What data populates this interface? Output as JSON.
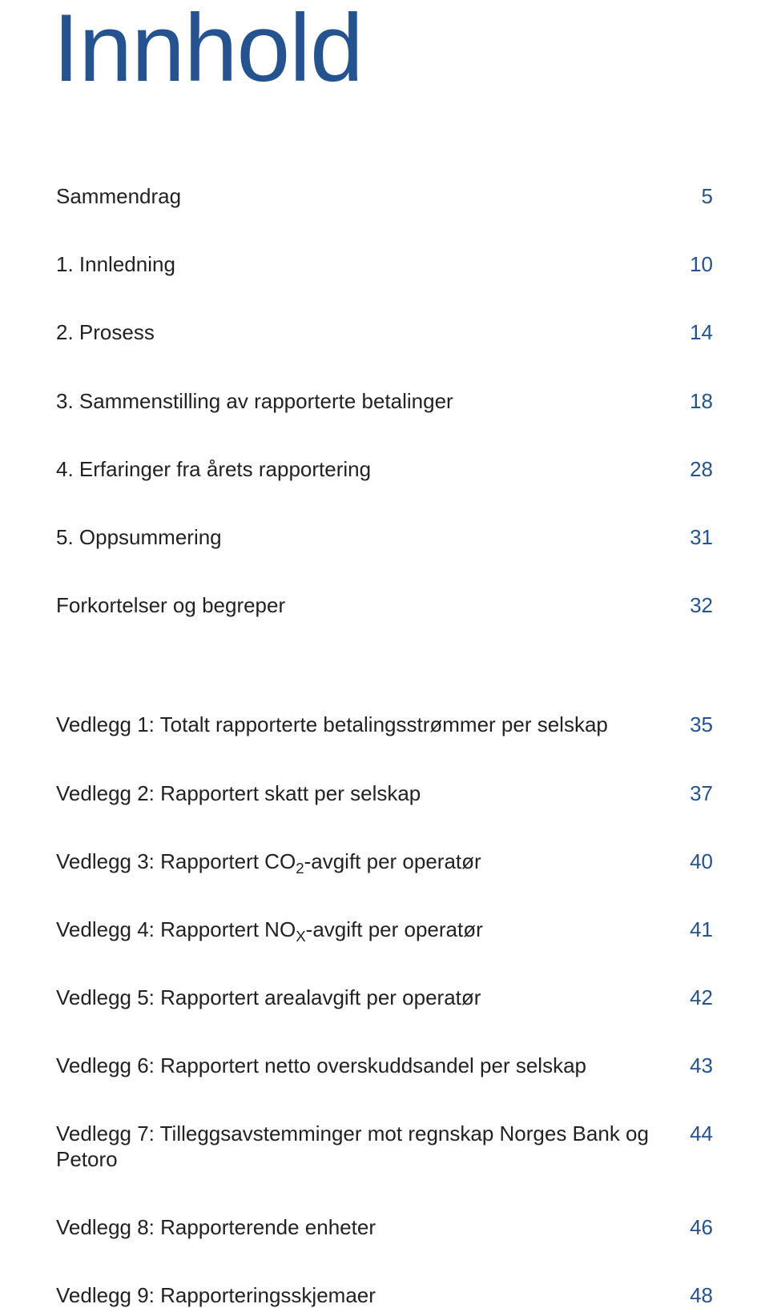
{
  "title": "Innhold",
  "title_color": "#25538f",
  "page_number_color": "#25538f",
  "label_color": "#222222",
  "entries": [
    {
      "label": "Sammendrag",
      "page": "5"
    },
    {
      "label": "1. Innledning",
      "page": "10"
    },
    {
      "label": "2. Prosess",
      "page": "14"
    },
    {
      "label": "3. Sammenstilling av rapporterte betalinger",
      "page": "18"
    },
    {
      "label": "4. Erfaringer fra årets rapportering",
      "page": "28"
    },
    {
      "label": "5. Oppsummering",
      "page": "31"
    },
    {
      "label": "Forkortelser og begreper",
      "page": "32"
    }
  ],
  "appendix": [
    {
      "label": "Vedlegg 1: Totalt rapporterte betalingsstrømmer per selskap",
      "page": "35"
    },
    {
      "label_html": "Vedlegg 2: Rapportert skatt per selskap",
      "page": "37"
    },
    {
      "label_co2_prefix": "Vedlegg 3: Rapportert CO",
      "label_co2_sub": "2",
      "label_co2_suffix": "-avgift per operatør",
      "page": "40"
    },
    {
      "label_nox_prefix": "Vedlegg 4: Rapportert NO",
      "label_nox_sub": "X",
      "label_nox_suffix": "-avgift per operatør",
      "page": "41"
    },
    {
      "label": "Vedlegg 5: Rapportert arealavgift per operatør",
      "page": "42"
    },
    {
      "label": "Vedlegg 6: Rapportert netto overskuddsandel per selskap",
      "page": "43"
    },
    {
      "label": "Vedlegg 7: Tilleggsavstemminger mot regnskap Norges Bank og Petoro",
      "page": "44"
    },
    {
      "label": "Vedlegg 8: Rapporterende enheter",
      "page": "46"
    },
    {
      "label": "Vedlegg 9: Rapporteringsskjemaer",
      "page": "48"
    }
  ]
}
